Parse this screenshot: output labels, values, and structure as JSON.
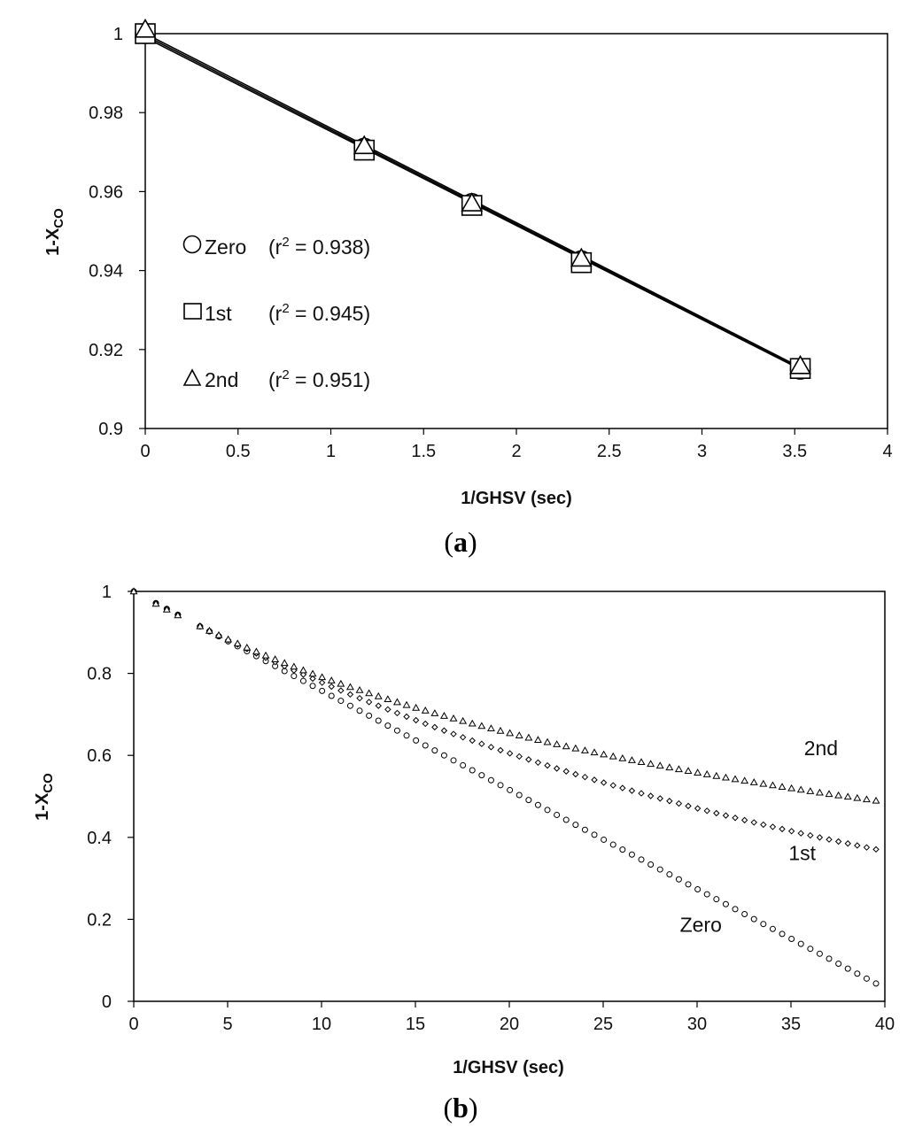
{
  "chart_data": [
    {
      "id": "a",
      "type": "scatter",
      "panel_label": "(a)",
      "panel_letter": "a",
      "xlabel": "1/GHSV (sec)",
      "ylabel": "1-X",
      "ylabel_sub": "CO",
      "xlim": [
        0,
        4
      ],
      "ylim": [
        0.9,
        1
      ],
      "xticks": [
        0,
        0.5,
        1,
        1.5,
        2,
        2.5,
        3,
        3.5,
        4
      ],
      "xtick_labels": [
        "0",
        "0.5",
        "1",
        "1.5",
        "2",
        "2.5",
        "3",
        "3.5",
        "4"
      ],
      "yticks": [
        0.9,
        0.92,
        0.94,
        0.96,
        0.98,
        1
      ],
      "ytick_labels": [
        "0.9",
        "0.92",
        "0.94",
        "0.96",
        "0.98",
        "1"
      ],
      "grid": false,
      "legend_position": "left",
      "series": [
        {
          "name": "Zero",
          "marker": "circle",
          "r2_label": "(r",
          "r2_value": " = 0.938)",
          "exp": "2",
          "x": [
            0,
            1.18,
            1.76,
            2.35,
            3.53
          ],
          "y": [
            1.0,
            0.971,
            0.957,
            0.9425,
            0.915
          ],
          "fit": [
            [
              0,
              1.0
            ],
            [
              3.53,
              0.9155
            ]
          ]
        },
        {
          "name": "1st",
          "marker": "square",
          "r2_label": "(r",
          "r2_value": " = 0.945)",
          "exp": "2",
          "x": [
            0,
            1.18,
            1.76,
            2.35,
            3.53
          ],
          "y": [
            1.0,
            0.9705,
            0.9565,
            0.942,
            0.9152
          ],
          "fit": [
            [
              0,
              0.9995
            ],
            [
              3.53,
              0.9152
            ]
          ]
        },
        {
          "name": "2nd",
          "marker": "triangle",
          "r2_label": "(r",
          "r2_value": " = 0.951)",
          "exp": "2",
          "x": [
            0,
            1.18,
            1.76,
            2.35,
            3.53
          ],
          "y": [
            1.001,
            0.9715,
            0.957,
            0.943,
            0.9158
          ],
          "fit": [
            [
              0,
              0.999
            ],
            [
              3.53,
              0.915
            ]
          ]
        }
      ]
    },
    {
      "id": "b",
      "type": "scatter",
      "panel_label": "(b)",
      "panel_letter": "b",
      "xlabel": "1/GHSV (sec)",
      "ylabel": "1-X",
      "ylabel_sub": "CO",
      "xlim": [
        0,
        40
      ],
      "ylim": [
        0,
        1
      ],
      "xticks": [
        0,
        5,
        10,
        15,
        20,
        25,
        30,
        35,
        40
      ],
      "xtick_labels": [
        "0",
        "5",
        "10",
        "15",
        "20",
        "25",
        "30",
        "35",
        "40"
      ],
      "yticks": [
        0,
        0.2,
        0.4,
        0.6,
        0.8,
        1
      ],
      "ytick_labels": [
        "0",
        "0.2",
        "0.4",
        "0.6",
        "0.8",
        "1"
      ],
      "grid": false,
      "series": [
        {
          "name": "Zero",
          "marker": "circle",
          "model": "zero",
          "k": 0.0242
        },
        {
          "name": "1st",
          "marker": "diamond",
          "model": "first",
          "k": 0.0251
        },
        {
          "name": "2nd",
          "marker": "triangle",
          "model": "second",
          "k": 0.0264
        }
      ],
      "measured_x": [
        0,
        1.18,
        1.76,
        2.35
      ],
      "model_x_start": 3.53,
      "model_x_step": 0.5,
      "model_x_end": 40,
      "curve_labels": [
        {
          "text": "2nd",
          "x": 36.6,
          "y": 0.6
        },
        {
          "text": "1st",
          "x": 35.6,
          "y": 0.345
        },
        {
          "text": "Zero",
          "x": 30.2,
          "y": 0.17
        }
      ]
    }
  ]
}
